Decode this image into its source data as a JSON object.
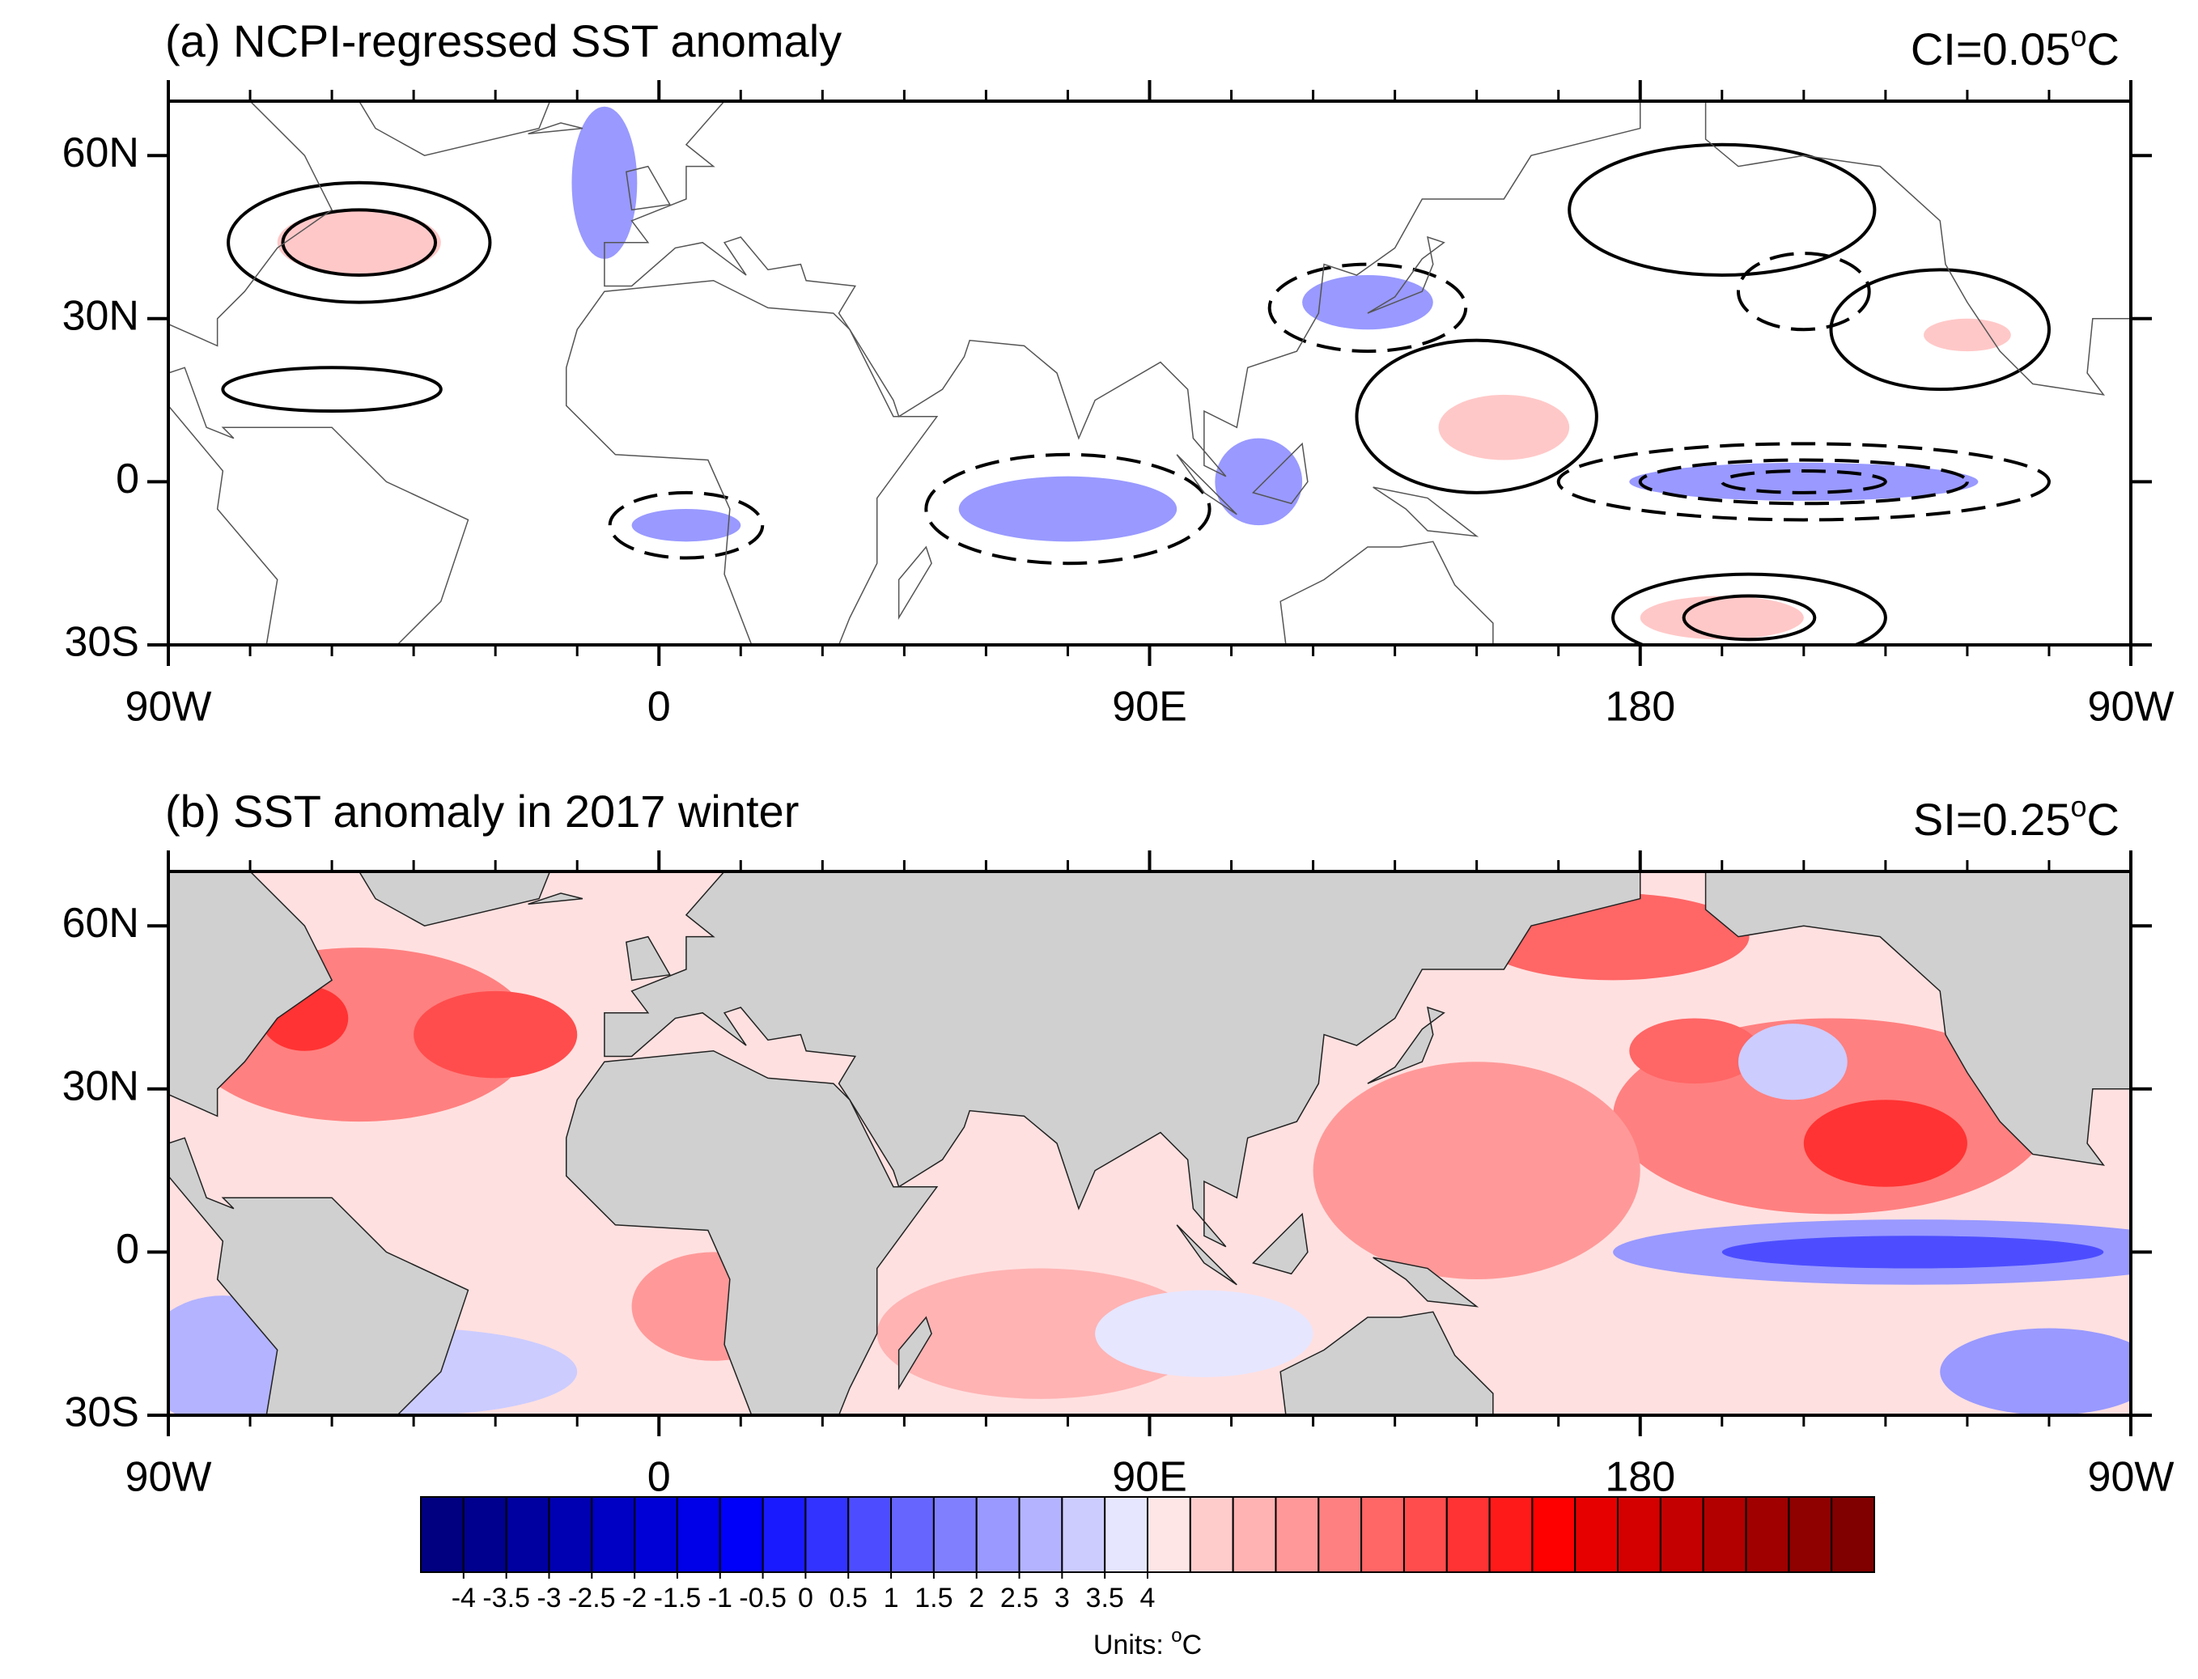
{
  "panels": [
    {
      "title": "(a) NCPI-regressed SST anomaly",
      "note": {
        "text": "CI=0.05",
        "sup": "o",
        "unit": "C"
      },
      "xlim": [
        -90,
        270
      ],
      "ylim": [
        -30,
        70
      ],
      "xticks": [
        {
          "value": -90,
          "label": "90W"
        },
        0,
        {
          "value": 90,
          "label": "90E"
        },
        180,
        {
          "value": 270,
          "label": "90W"
        }
      ],
      "yticks": [
        {
          "value": 60,
          "label": "60N"
        },
        {
          "value": 30,
          "label": "30N"
        },
        0,
        {
          "value": -30,
          "label": "30S"
        }
      ]
    },
    {
      "title": "(b) SST anomaly in 2017 winter",
      "note": {
        "text": "SI=0.25",
        "sup": "o",
        "unit": "C"
      },
      "xlim": [
        -90,
        270
      ],
      "ylim": [
        -30,
        70
      ],
      "xticks": [
        {
          "value": -90,
          "label": "90W"
        },
        0,
        {
          "value": 90,
          "label": "90E"
        },
        180,
        {
          "value": 270,
          "label": "90W"
        }
      ],
      "yticks": [
        {
          "value": 60,
          "label": "60N"
        },
        {
          "value": 30,
          "label": "30N"
        },
        0,
        {
          "value": -30,
          "label": "30S"
        }
      ]
    }
  ],
  "colorbar": {
    "ticks": [
      -4,
      -3.5,
      -3,
      -2.5,
      -2,
      -1.5,
      -1,
      -0.5,
      0,
      0.5,
      1,
      1.5,
      2,
      2.5,
      3,
      3.5,
      4
    ],
    "colors": [
      "#000080",
      "#00008f",
      "#0000a0",
      "#0000b2",
      "#0000c4",
      "#0000d6",
      "#0000e8",
      "#0000fa",
      "#1a1aff",
      "#3333ff",
      "#4d4dff",
      "#6666ff",
      "#8080ff",
      "#9999ff",
      "#b3b3ff",
      "#ccccff",
      "#e6e6ff",
      "#ffe6e6",
      "#ffcccc",
      "#ffb3b3",
      "#ff9999",
      "#ff8080",
      "#ff6666",
      "#ff4d4d",
      "#ff3333",
      "#ff1a1a",
      "#ff0000",
      "#e60000",
      "#d40000",
      "#c40000",
      "#b20000",
      "#a00000",
      "#8f0000",
      "#800000"
    ],
    "units": {
      "text": "Units: ",
      "sup": "o",
      "unit": "C"
    }
  }
}
